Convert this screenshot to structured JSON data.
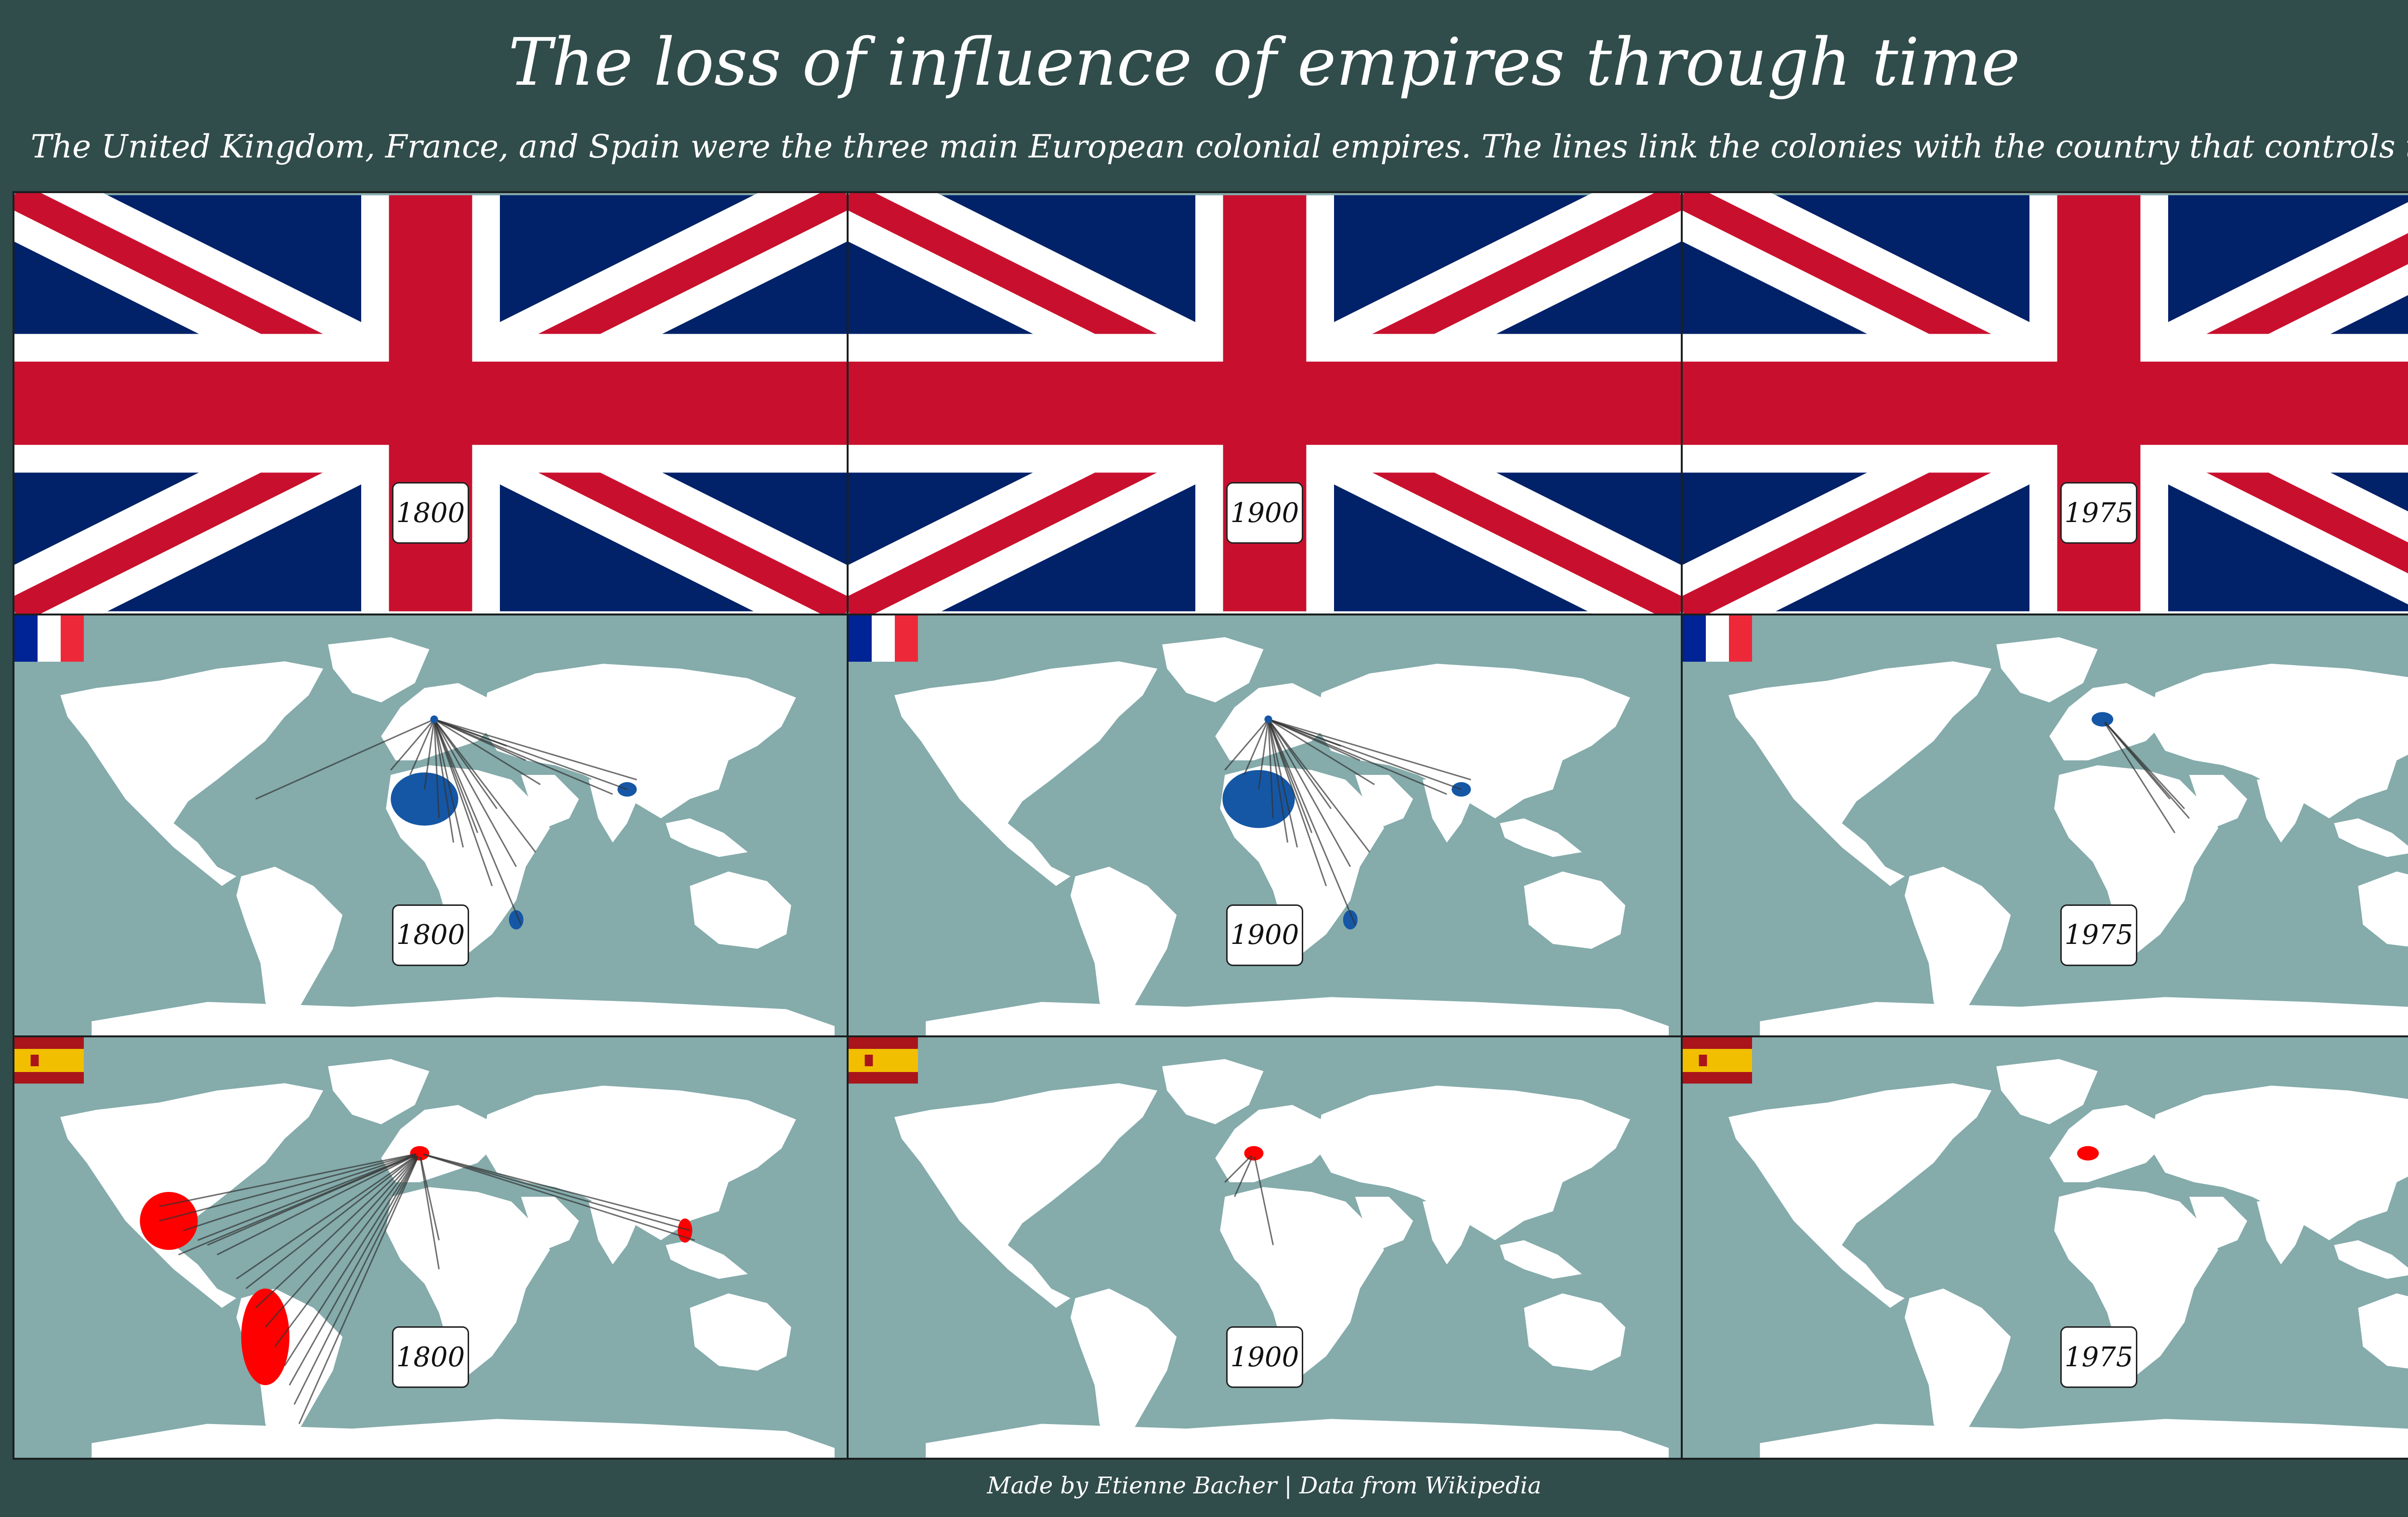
{
  "title": "The loss of influence of empires through time",
  "subtitle": "The United Kingdom, France, and Spain were the three main European colonial empires. The lines link the colonies with the country that controls them.",
  "footer": "Made by Etienne Bacher | Data from Wikipedia",
  "colors": {
    "background": "#304c4b",
    "ocean": "#85abab",
    "land": "#ffffff",
    "uk_colonies": "#0b2a63",
    "france_colonies": "#1557a5",
    "spain_colonies": "#ff0000",
    "links": "#333333"
  },
  "panels": [
    {
      "empire": "United Kingdom",
      "flag_icon": "uk-flag-icon",
      "year": "1800"
    },
    {
      "empire": "United Kingdom",
      "flag_icon": "uk-flag-icon",
      "year": "1900"
    },
    {
      "empire": "United Kingdom",
      "flag_icon": "uk-flag-icon",
      "year": "1975"
    },
    {
      "empire": "France",
      "flag_icon": "france-flag-icon",
      "year": "1800"
    },
    {
      "empire": "France",
      "flag_icon": "france-flag-icon",
      "year": "1900"
    },
    {
      "empire": "France",
      "flag_icon": "france-flag-icon",
      "year": "1975"
    },
    {
      "empire": "Spain",
      "flag_icon": "spain-flag-icon",
      "year": "1800"
    },
    {
      "empire": "Spain",
      "flag_icon": "spain-flag-icon",
      "year": "1900"
    },
    {
      "empire": "Spain",
      "flag_icon": "spain-flag-icon",
      "year": "1975"
    }
  ]
}
